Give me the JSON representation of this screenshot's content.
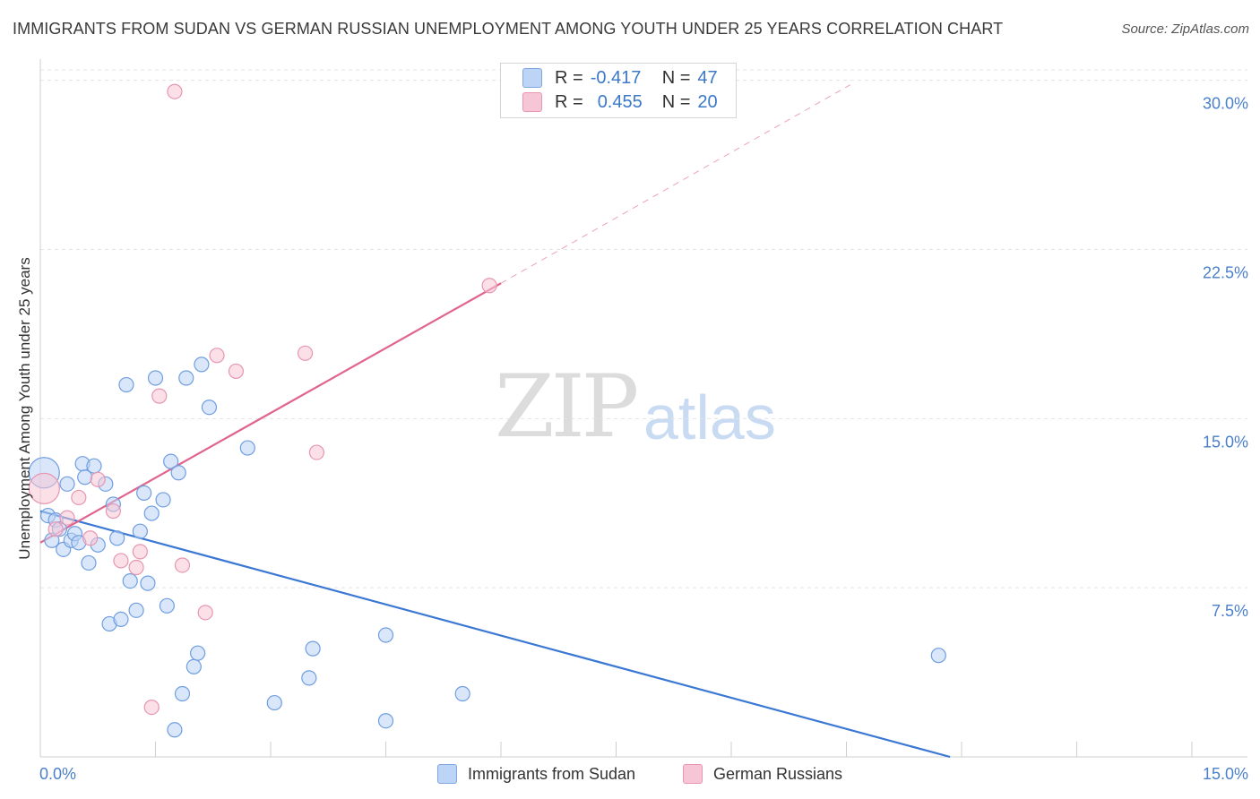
{
  "title": "IMMIGRANTS FROM SUDAN VS GERMAN RUSSIAN UNEMPLOYMENT AMONG YOUTH UNDER 25 YEARS CORRELATION CHART",
  "source": "Source: ZipAtlas.com",
  "watermark": {
    "zip": "ZIP",
    "atlas": "atlas"
  },
  "colors": {
    "blue": "#3a78d4",
    "blue_fill": "#bcd4f5",
    "pink": "#e0648e",
    "pink_fill": "#f7c6d6",
    "grid": "#e3e3e3",
    "tick_text": "#4a7fca"
  },
  "legend": {
    "rows": [
      {
        "r_label": "R =",
        "r_value": "-0.417",
        "n_label": "N =",
        "n_value": "47"
      },
      {
        "r_label": "R =",
        "r_value": "0.455",
        "n_label": "N =",
        "n_value": "20"
      }
    ]
  },
  "bottom_legend": {
    "series1": "Immigrants from Sudan",
    "series2": "German Russians"
  },
  "chart_data": {
    "type": "scatter",
    "title": "IMMIGRANTS FROM SUDAN VS GERMAN RUSSIAN UNEMPLOYMENT AMONG YOUTH UNDER 25 YEARS CORRELATION CHART",
    "xlabel": "",
    "ylabel": "Unemployment Among Youth under 25 years",
    "xlim": [
      0,
      15
    ],
    "ylim": [
      0,
      30.7
    ],
    "x_tick_labels": [
      "0.0%",
      "15.0%"
    ],
    "y_ticks": [
      7.5,
      15.0,
      22.5,
      30.0
    ],
    "y_tick_labels": [
      "7.5%",
      "15.0%",
      "22.5%",
      "30.0%"
    ],
    "grid": true,
    "series": [
      {
        "name": "Immigrants from Sudan",
        "r": -0.417,
        "n": 47,
        "trend": {
          "x": [
            0.0,
            11.85
          ],
          "y": [
            10.9,
            0.0
          ],
          "style": "solid"
        },
        "points": [
          {
            "x": 0.05,
            "y": 12.6,
            "big": true
          },
          {
            "x": 0.1,
            "y": 10.7
          },
          {
            "x": 0.15,
            "y": 9.6
          },
          {
            "x": 0.2,
            "y": 10.5
          },
          {
            "x": 0.25,
            "y": 10.1
          },
          {
            "x": 0.3,
            "y": 9.2
          },
          {
            "x": 0.35,
            "y": 12.1
          },
          {
            "x": 0.4,
            "y": 9.6
          },
          {
            "x": 0.45,
            "y": 9.9
          },
          {
            "x": 0.5,
            "y": 9.5
          },
          {
            "x": 0.55,
            "y": 13.0
          },
          {
            "x": 0.58,
            "y": 12.4
          },
          {
            "x": 0.63,
            "y": 8.6
          },
          {
            "x": 0.7,
            "y": 12.9
          },
          {
            "x": 0.75,
            "y": 9.4
          },
          {
            "x": 0.85,
            "y": 12.1
          },
          {
            "x": 0.9,
            "y": 5.9
          },
          {
            "x": 0.95,
            "y": 11.2
          },
          {
            "x": 1.0,
            "y": 9.7
          },
          {
            "x": 1.05,
            "y": 6.1
          },
          {
            "x": 1.12,
            "y": 16.5
          },
          {
            "x": 1.17,
            "y": 7.8
          },
          {
            "x": 1.25,
            "y": 6.5
          },
          {
            "x": 1.3,
            "y": 10.0
          },
          {
            "x": 1.35,
            "y": 11.7
          },
          {
            "x": 1.4,
            "y": 7.7
          },
          {
            "x": 1.45,
            "y": 10.8
          },
          {
            "x": 1.5,
            "y": 16.8
          },
          {
            "x": 1.6,
            "y": 11.4
          },
          {
            "x": 1.65,
            "y": 6.7
          },
          {
            "x": 1.7,
            "y": 13.1
          },
          {
            "x": 1.75,
            "y": 1.2
          },
          {
            "x": 1.8,
            "y": 12.6
          },
          {
            "x": 1.85,
            "y": 2.8
          },
          {
            "x": 1.9,
            "y": 16.8
          },
          {
            "x": 2.0,
            "y": 4.0
          },
          {
            "x": 2.05,
            "y": 4.6
          },
          {
            "x": 2.1,
            "y": 17.4
          },
          {
            "x": 2.2,
            "y": 15.5
          },
          {
            "x": 2.7,
            "y": 13.7
          },
          {
            "x": 3.05,
            "y": 2.4
          },
          {
            "x": 3.5,
            "y": 3.5
          },
          {
            "x": 3.55,
            "y": 4.8
          },
          {
            "x": 4.5,
            "y": 1.6
          },
          {
            "x": 4.5,
            "y": 5.4
          },
          {
            "x": 5.5,
            "y": 2.8
          },
          {
            "x": 11.7,
            "y": 4.5
          }
        ]
      },
      {
        "name": "German Russians",
        "r": 0.455,
        "n": 20,
        "trend": {
          "x": [
            0.0,
            6.0
          ],
          "y": [
            9.5,
            21.0
          ],
          "style": "solid"
        },
        "trend_extension": {
          "x": [
            6.0,
            10.55
          ],
          "y": [
            21.0,
            29.8
          ],
          "style": "dashed"
        },
        "points": [
          {
            "x": 0.05,
            "y": 11.9,
            "big": true
          },
          {
            "x": 0.2,
            "y": 10.1
          },
          {
            "x": 0.35,
            "y": 10.6
          },
          {
            "x": 0.5,
            "y": 11.5
          },
          {
            "x": 0.65,
            "y": 9.7
          },
          {
            "x": 0.75,
            "y": 12.3
          },
          {
            "x": 0.95,
            "y": 10.9
          },
          {
            "x": 1.05,
            "y": 8.7
          },
          {
            "x": 1.25,
            "y": 8.4
          },
          {
            "x": 1.3,
            "y": 9.1
          },
          {
            "x": 1.45,
            "y": 2.2
          },
          {
            "x": 1.55,
            "y": 16.0
          },
          {
            "x": 1.75,
            "y": 29.5
          },
          {
            "x": 1.85,
            "y": 8.5
          },
          {
            "x": 2.15,
            "y": 6.4
          },
          {
            "x": 2.3,
            "y": 17.8
          },
          {
            "x": 2.55,
            "y": 17.1
          },
          {
            "x": 3.45,
            "y": 17.9
          },
          {
            "x": 3.6,
            "y": 13.5
          },
          {
            "x": 5.85,
            "y": 20.9
          }
        ]
      }
    ]
  }
}
